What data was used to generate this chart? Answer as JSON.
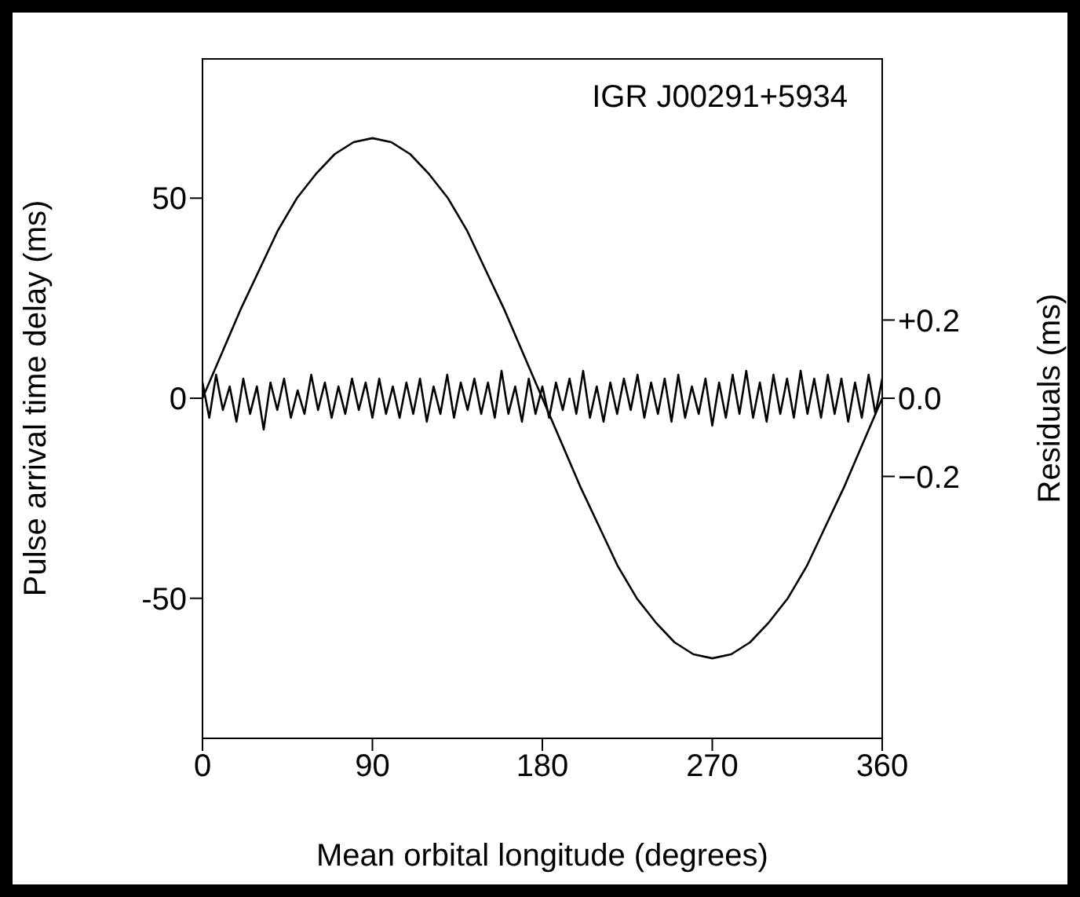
{
  "chart_data": {
    "type": "line",
    "xlabel": "Mean orbital longitude (degrees)",
    "ylabel": "Pulse arrival time delay (ms)",
    "y2label": "Residuals (ms)",
    "annotations": [
      "IGR J00291+5934"
    ],
    "xlim": [
      0,
      360
    ],
    "xticks": [
      0,
      90,
      180,
      270,
      360
    ],
    "ylim": [
      -85,
      85
    ],
    "yticks": [
      -50,
      0,
      50
    ],
    "y2lim": [
      -0.87,
      0.87
    ],
    "y2ticks": [
      {
        "value": -0.2,
        "label": "−0.2"
      },
      {
        "value": 0,
        "label": "0.0"
      },
      {
        "value": 0.2,
        "label": "+0.2"
      }
    ],
    "grid": false,
    "legend": false,
    "marker": "none",
    "line_style": "solid",
    "series": [
      {
        "color": "#000000",
        "x": [
          0,
          10,
          20,
          30,
          40,
          50,
          60,
          70,
          80,
          90,
          100,
          110,
          120,
          130,
          140,
          150,
          160,
          170,
          180,
          190,
          200,
          210,
          220,
          230,
          240,
          250,
          260,
          270,
          280,
          290,
          300,
          310,
          320,
          330,
          340,
          350,
          360
        ],
        "values": [
          0,
          11,
          22,
          32,
          42,
          50,
          56,
          61,
          64,
          65,
          64,
          61,
          56,
          50,
          42,
          32,
          22,
          11,
          0,
          -11,
          -22,
          -32,
          -42,
          -50,
          -56,
          -61,
          -64,
          -65,
          -64,
          -61,
          -56,
          -50,
          -42,
          -32,
          -22,
          -11,
          0
        ]
      },
      {
        "color": "#000000",
        "axis": "y2",
        "x": [
          0,
          3.6,
          7.2,
          10.8,
          14.4,
          18,
          21.6,
          25.2,
          28.8,
          32.4,
          36,
          39.6,
          43.2,
          46.8,
          50.4,
          54,
          57.6,
          61.2,
          64.8,
          68.4,
          72,
          75.6,
          79.2,
          82.8,
          86.4,
          90,
          93.6,
          97.2,
          100.8,
          104.4,
          108,
          111.6,
          115.2,
          118.8,
          122.4,
          126,
          129.6,
          133.2,
          136.8,
          140.4,
          144,
          147.6,
          151.2,
          154.8,
          158.4,
          162,
          165.6,
          169.2,
          172.8,
          176.4,
          180,
          183.6,
          187.2,
          190.8,
          194.4,
          198,
          201.6,
          205.2,
          208.8,
          212.4,
          216,
          219.6,
          223.2,
          226.8,
          230.4,
          234,
          237.6,
          241.2,
          244.8,
          248.4,
          252,
          255.6,
          259.2,
          262.8,
          266.4,
          270,
          273.6,
          277.2,
          280.8,
          284.4,
          288,
          291.6,
          295.2,
          298.8,
          302.4,
          306,
          309.6,
          313.2,
          316.8,
          320.4,
          324,
          327.6,
          331.2,
          334.8,
          338.4,
          342,
          345.6,
          349.2,
          352.8,
          356.4,
          360
        ],
        "values": [
          0.04,
          -0.05,
          0.06,
          -0.03,
          0.03,
          -0.06,
          0.05,
          -0.04,
          0.03,
          -0.08,
          0.04,
          -0.03,
          0.05,
          -0.05,
          0.02,
          -0.04,
          0.06,
          -0.03,
          0.04,
          -0.05,
          0.03,
          -0.04,
          0.05,
          -0.03,
          0.04,
          -0.05,
          0.05,
          -0.04,
          0.03,
          -0.05,
          0.04,
          -0.04,
          0.05,
          -0.06,
          0.03,
          -0.04,
          0.06,
          -0.05,
          0.04,
          -0.03,
          0.05,
          -0.04,
          0.04,
          -0.05,
          0.07,
          -0.04,
          0.03,
          -0.06,
          0.05,
          -0.04,
          0.03,
          -0.05,
          0.04,
          -0.03,
          0.05,
          -0.04,
          0.07,
          -0.05,
          0.03,
          -0.06,
          0.04,
          -0.04,
          0.05,
          -0.03,
          0.06,
          -0.05,
          0.04,
          -0.04,
          0.05,
          -0.06,
          0.06,
          -0.05,
          0.03,
          -0.04,
          0.05,
          -0.07,
          0.04,
          -0.05,
          0.06,
          -0.04,
          0.07,
          -0.05,
          0.04,
          -0.06,
          0.06,
          -0.04,
          0.05,
          -0.05,
          0.07,
          -0.04,
          0.05,
          -0.05,
          0.06,
          -0.04,
          0.05,
          -0.06,
          0.04,
          -0.05,
          0.06,
          -0.04,
          0.05
        ]
      }
    ]
  }
}
